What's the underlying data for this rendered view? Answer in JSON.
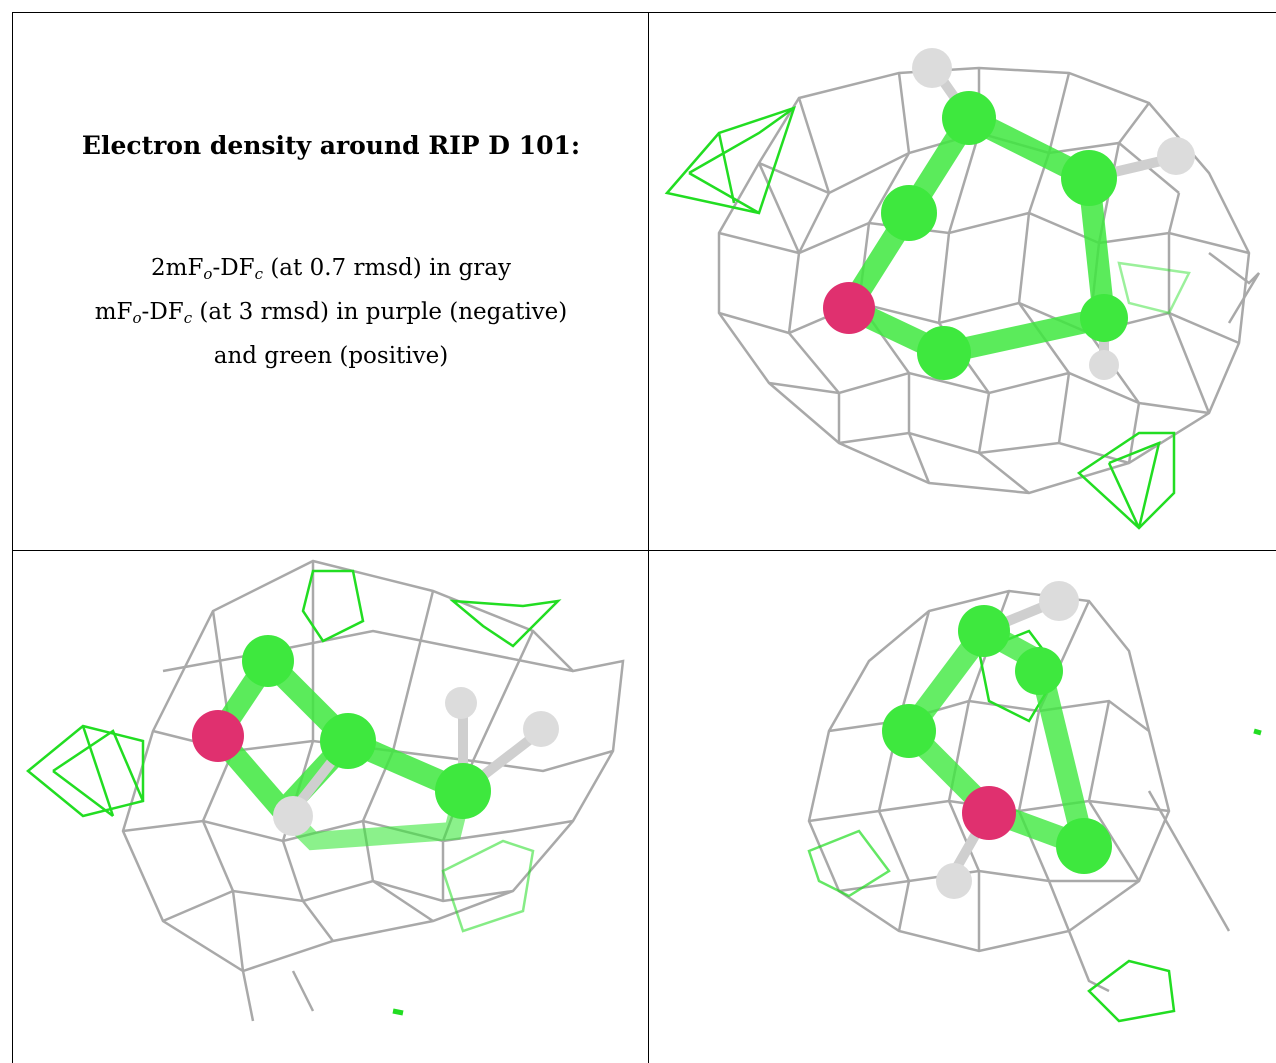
{
  "caption": {
    "title": "Electron density around RIP D 101:",
    "line1": {
      "pre": "2mF",
      "sub1": "o",
      "mid": "-DF",
      "sub2": "c",
      "post": " (at 0.7 rmsd) in gray"
    },
    "line2": {
      "pre": "mF",
      "sub1": "o",
      "mid": "-DF",
      "sub2": "c",
      "post": " (at 3 rmsd) in purple (negative)"
    },
    "line3": "and green (positive)"
  },
  "colors": {
    "mesh_gray": "#a9a9a9",
    "mesh_green": "#22dd22",
    "carbon_green": "#3ee83e",
    "oxygen_pink": "#e0306f",
    "hydrogen_white": "#dcdcdc"
  },
  "panels": [
    {
      "name": "view-1",
      "icon": "molecule-density-view"
    },
    {
      "name": "view-2",
      "icon": "molecule-density-view"
    },
    {
      "name": "view-3",
      "icon": "molecule-density-view"
    }
  ]
}
